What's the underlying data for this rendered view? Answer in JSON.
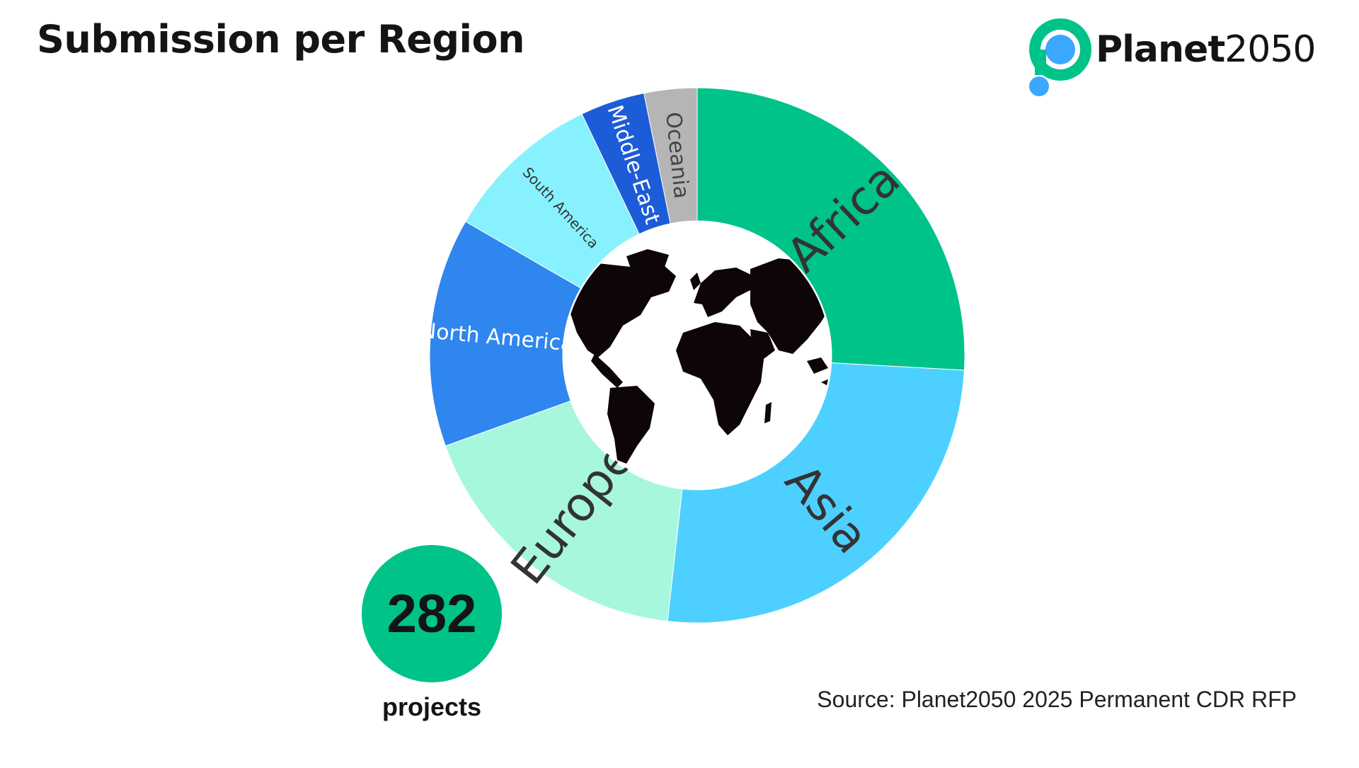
{
  "title": "Submission per Region",
  "logo": {
    "name_bold": "Planet",
    "name_light": "2050",
    "colors": {
      "green": "#00c389",
      "blue": "#3aa8ff"
    }
  },
  "total": {
    "value": "282",
    "label": "projects"
  },
  "source": "Source: Planet2050 2025 Permanent CDR RFP",
  "chart_data": {
    "type": "pie",
    "donut": true,
    "title": "Submission per Region",
    "center_image": "world-map",
    "categories": [
      "Africa",
      "Asia",
      "Europe",
      "North America",
      "South America",
      "Middle-East",
      "Oceania"
    ],
    "values": [
      73,
      73,
      50,
      39,
      27,
      11,
      9
    ],
    "colors": [
      "#00c389",
      "#4dd0ff",
      "#a6f7de",
      "#2e86ee",
      "#88f1ff",
      "#1d5cd8",
      "#b5b5b5"
    ],
    "label_colors": [
      "#333333",
      "#333333",
      "#333333",
      "#ffffff",
      "#333333",
      "#ffffff",
      "#444444"
    ],
    "label_sizes": [
      "large",
      "large",
      "large",
      "medium",
      "small",
      "medium",
      "medium"
    ]
  }
}
